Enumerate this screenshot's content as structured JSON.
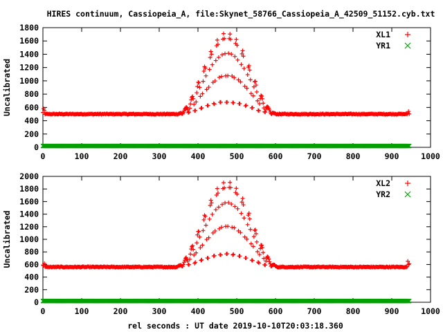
{
  "title": "HIRES continuum, Cassiopeia_A, file:Skynet_58766_Cassiopeia_A_42509_51152.cyb.txt",
  "xlabel": "rel seconds : UT date 2019-10-10T20:03:18.360",
  "colors": {
    "series_x": "#ff0000",
    "series_y": "#00a000",
    "axis": "#000000",
    "background": "#ffffff"
  },
  "chart_data": [
    {
      "type": "scatter",
      "ylabel": "Uncalibrated",
      "xlim": [
        0,
        1000
      ],
      "ylim": [
        0,
        1800
      ],
      "xticks": [
        0,
        100,
        200,
        300,
        400,
        500,
        600,
        700,
        800,
        900,
        1000
      ],
      "yticks": [
        0,
        200,
        400,
        600,
        800,
        1000,
        1200,
        1400,
        1600,
        1800
      ],
      "legend_position": "top-right",
      "series": [
        {
          "name": "XL1",
          "marker": "plus",
          "color": "#ff0000",
          "x_range": [
            0,
            945
          ],
          "baseline": 500,
          "peak_center": 475,
          "peak_value": 1720,
          "peak_halfwidth_base": 130,
          "edge_spikes": 580
        },
        {
          "name": "YR1",
          "marker": "cross",
          "color": "#00a000",
          "x_range": [
            0,
            945
          ],
          "constant": 20
        }
      ]
    },
    {
      "type": "scatter",
      "ylabel": "Uncalibrated",
      "xlim": [
        0,
        1000
      ],
      "ylim": [
        0,
        2000
      ],
      "xticks": [
        0,
        100,
        200,
        300,
        400,
        500,
        600,
        700,
        800,
        900,
        1000
      ],
      "yticks": [
        0,
        200,
        400,
        600,
        800,
        1000,
        1200,
        1400,
        1600,
        1800,
        2000
      ],
      "legend_position": "top-right",
      "series": [
        {
          "name": "XL2",
          "marker": "plus",
          "color": "#ff0000",
          "x_range": [
            0,
            945
          ],
          "baseline": 560,
          "peak_center": 475,
          "peak_value": 1920,
          "peak_halfwidth_base": 135,
          "edge_spikes": 660
        },
        {
          "name": "YR2",
          "marker": "cross",
          "color": "#00a000",
          "x_range": [
            0,
            945
          ],
          "constant": 20
        }
      ]
    }
  ]
}
